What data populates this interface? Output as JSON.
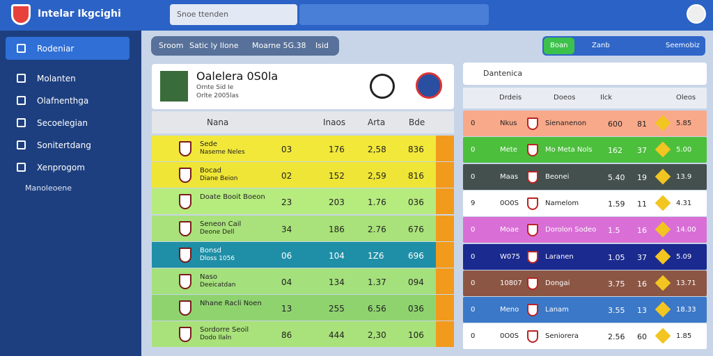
{
  "header": {
    "title": "Intelar Ikgcighi",
    "search": "Snoe ttenden"
  },
  "sidebar": {
    "items": [
      "Rodeniar",
      "Molanten",
      "Olafnenthga",
      "Secoelegian",
      "Sonitertdang",
      "Xenprogom"
    ],
    "section": "Manoleoene"
  },
  "toolbar": {
    "filters": [
      "Sroom",
      "Satic ly Ilone",
      "Moarne 5G.38",
      "Isid"
    ],
    "tabs": [
      "Boan",
      "Zanb",
      "Seemobiz"
    ]
  },
  "profile": {
    "name": "Oalelera 0S0la",
    "line1": "Ornte Sid Ie",
    "line2": "Orlte 2005las"
  },
  "table": {
    "headers": [
      "Nana",
      "Inaos",
      "Arta",
      "Bde"
    ],
    "rows": [
      [
        "Sede",
        "Naseme Neles",
        "03",
        "176",
        "2,58",
        "836"
      ],
      [
        "Bocad",
        "Diane Beion",
        "02",
        "152",
        "2,59",
        "816"
      ],
      [
        "Doate Booit Boeon",
        "",
        "23",
        "203",
        "1.76",
        "036"
      ],
      [
        "Seneon Cail",
        "Deone Dell",
        "34",
        "186",
        "2.76",
        "676"
      ],
      [
        "Bonsd",
        "Dloss 1056",
        "06",
        "104",
        "1Z6",
        "696"
      ],
      [
        "Naso",
        "Deeicatdan",
        "04",
        "134",
        "1.37",
        "094"
      ],
      [
        "Nhane Racli Noen",
        "",
        "13",
        "255",
        "6.56",
        "036"
      ],
      [
        "Sordorre Seoil",
        "Dodo Ilaln",
        "86",
        "444",
        "2,30",
        "106"
      ]
    ]
  },
  "panel": {
    "title": "Dantenica",
    "headers": [
      "Drdeis",
      "Doeos",
      "Ilck",
      "Oleos"
    ],
    "rows": [
      [
        "0",
        "Nkus",
        "Sienanenon",
        "600",
        "81",
        "5.85"
      ],
      [
        "0",
        "Mete",
        "Mo Meta Nols",
        "162",
        "37",
        "5.00"
      ],
      [
        "0",
        "Maas",
        "Beonei",
        "5.40",
        "19",
        "13.9"
      ],
      [
        "9",
        "0O0S",
        "Namelom",
        "1.59",
        "11",
        "4.31"
      ],
      [
        "0",
        "Moae",
        "Dorolon Sodeo",
        "1.5",
        "16",
        "14.00"
      ],
      [
        "0",
        "W075",
        "Laranen",
        "1.05",
        "37",
        "5.09"
      ],
      [
        "0",
        "10807",
        "Dongai",
        "3.75",
        "16",
        "13.71"
      ],
      [
        "0",
        "Meno",
        "Lanam",
        "3.55",
        "13",
        "18.33"
      ],
      [
        "0",
        "0O0S",
        "Seniorera",
        "2.56",
        "60",
        "1.85"
      ]
    ]
  }
}
